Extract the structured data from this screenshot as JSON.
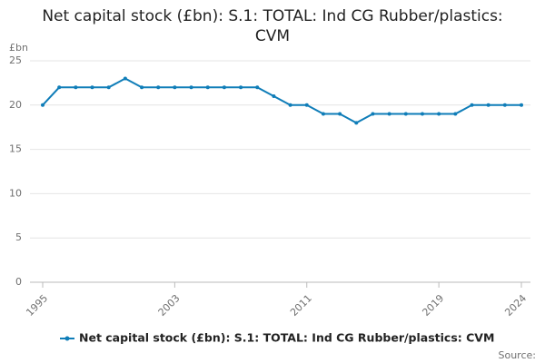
{
  "chart_data": {
    "type": "line",
    "title": "Net capital stock (£bn): S.1: TOTAL: Ind CG Rubber/plastics: CVM",
    "y_label": "£bn",
    "source_label": "Source:",
    "x": [
      1995,
      1996,
      1997,
      1998,
      1999,
      2000,
      2001,
      2002,
      2003,
      2004,
      2005,
      2006,
      2007,
      2008,
      2009,
      2010,
      2011,
      2012,
      2013,
      2014,
      2015,
      2016,
      2017,
      2018,
      2019,
      2020,
      2021,
      2022,
      2023,
      2024
    ],
    "series": [
      {
        "name": "Net capital stock (£bn): S.1: TOTAL: Ind CG Rubber/plastics: CVM",
        "color": "#0f7db8",
        "values": [
          20,
          22,
          22,
          22,
          22,
          23,
          22,
          22,
          22,
          22,
          22,
          22,
          22,
          22,
          21,
          20,
          20,
          19,
          19,
          18,
          19,
          19,
          19,
          19,
          19,
          19,
          20,
          20,
          20,
          20
        ]
      }
    ],
    "xlim": [
      1995,
      2024
    ],
    "xticks": [
      1995,
      2003,
      2011,
      2019,
      2024
    ],
    "ylim": [
      0,
      25
    ],
    "yticks": [
      0,
      5,
      10,
      15,
      20,
      25
    ],
    "grid": true
  }
}
